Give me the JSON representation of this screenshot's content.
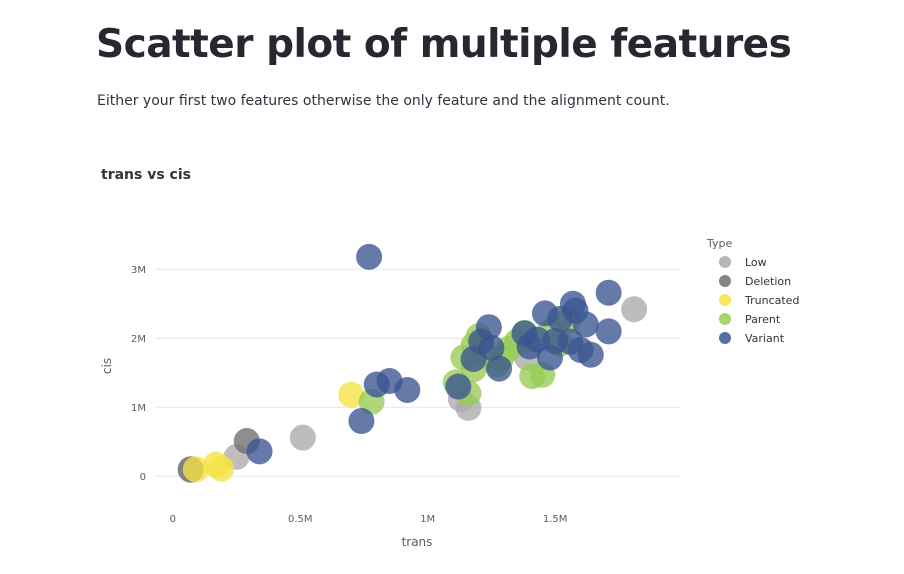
{
  "page": {
    "title": "Scatter plot of multiple features",
    "caption": "Either your first two features otherwise the only feature and the alignment count."
  },
  "chart_data": {
    "type": "scatter",
    "title": "trans vs cis",
    "xlabel": "trans",
    "ylabel": "cis",
    "xlim": [
      -0.07,
      1.99
    ],
    "ylim": [
      -0.2,
      3.25
    ],
    "unit": "M",
    "x_ticks": [
      {
        "value": 0,
        "label": "0"
      },
      {
        "value": 0.5,
        "label": "0.5M"
      },
      {
        "value": 1,
        "label": "1M"
      },
      {
        "value": 1.5,
        "label": "1.5M"
      }
    ],
    "y_ticks": [
      {
        "value": 0,
        "label": "0"
      },
      {
        "value": 1,
        "label": "1M"
      },
      {
        "value": 2,
        "label": "2M"
      },
      {
        "value": 3,
        "label": "3M"
      }
    ],
    "grid": true,
    "legend": {
      "title": "Type",
      "position": "right"
    },
    "series": [
      {
        "name": "Low",
        "color": "#aaaaaa",
        "points": [
          {
            "x": 0.07,
            "y": 0.09
          },
          {
            "x": 0.25,
            "y": 0.28
          },
          {
            "x": 0.51,
            "y": 0.56
          },
          {
            "x": 1.13,
            "y": 1.12
          },
          {
            "x": 1.16,
            "y": 0.99
          },
          {
            "x": 1.39,
            "y": 1.72
          },
          {
            "x": 1.81,
            "y": 2.42
          }
        ]
      },
      {
        "name": "Deletion",
        "color": "#6e6e6e",
        "points": [
          {
            "x": 0.07,
            "y": 0.1
          },
          {
            "x": 0.29,
            "y": 0.51
          }
        ]
      },
      {
        "name": "Truncated",
        "color": "#f5e342",
        "points": [
          {
            "x": 0.09,
            "y": 0.1
          },
          {
            "x": 0.17,
            "y": 0.17
          },
          {
            "x": 0.19,
            "y": 0.11
          },
          {
            "x": 0.7,
            "y": 1.18
          }
        ]
      },
      {
        "name": "Parent",
        "color": "#99cc55",
        "points": [
          {
            "x": 0.78,
            "y": 1.08
          },
          {
            "x": 1.11,
            "y": 1.36
          },
          {
            "x": 1.14,
            "y": 1.72
          },
          {
            "x": 1.16,
            "y": 1.2
          },
          {
            "x": 1.18,
            "y": 1.55
          },
          {
            "x": 1.18,
            "y": 1.9
          },
          {
            "x": 1.2,
            "y": 2.03
          },
          {
            "x": 1.23,
            "y": 1.75
          },
          {
            "x": 1.27,
            "y": 1.62
          },
          {
            "x": 1.29,
            "y": 1.72
          },
          {
            "x": 1.32,
            "y": 1.85
          },
          {
            "x": 1.35,
            "y": 1.95
          },
          {
            "x": 1.38,
            "y": 2.08
          },
          {
            "x": 1.41,
            "y": 1.45
          },
          {
            "x": 1.45,
            "y": 1.47
          },
          {
            "x": 1.48,
            "y": 2.1
          },
          {
            "x": 1.52,
            "y": 1.92
          },
          {
            "x": 1.55,
            "y": 2.25
          }
        ]
      },
      {
        "name": "Variant",
        "color": "#3a5591",
        "points": [
          {
            "x": 0.34,
            "y": 0.36
          },
          {
            "x": 0.74,
            "y": 0.8
          },
          {
            "x": 0.77,
            "y": 3.18
          },
          {
            "x": 0.8,
            "y": 1.33
          },
          {
            "x": 0.85,
            "y": 1.38
          },
          {
            "x": 0.92,
            "y": 1.25
          },
          {
            "x": 1.12,
            "y": 1.3
          },
          {
            "x": 1.18,
            "y": 1.7
          },
          {
            "x": 1.21,
            "y": 1.95
          },
          {
            "x": 1.24,
            "y": 2.16
          },
          {
            "x": 1.25,
            "y": 1.86
          },
          {
            "x": 1.28,
            "y": 1.56
          },
          {
            "x": 1.38,
            "y": 2.07
          },
          {
            "x": 1.4,
            "y": 1.88
          },
          {
            "x": 1.43,
            "y": 1.98
          },
          {
            "x": 1.46,
            "y": 2.36
          },
          {
            "x": 1.48,
            "y": 1.72
          },
          {
            "x": 1.5,
            "y": 1.96
          },
          {
            "x": 1.52,
            "y": 2.28
          },
          {
            "x": 1.56,
            "y": 1.95
          },
          {
            "x": 1.57,
            "y": 2.5
          },
          {
            "x": 1.58,
            "y": 2.4
          },
          {
            "x": 1.6,
            "y": 1.83
          },
          {
            "x": 1.62,
            "y": 2.2
          },
          {
            "x": 1.64,
            "y": 1.76
          },
          {
            "x": 1.71,
            "y": 2.66
          },
          {
            "x": 1.71,
            "y": 2.1
          }
        ]
      }
    ]
  }
}
